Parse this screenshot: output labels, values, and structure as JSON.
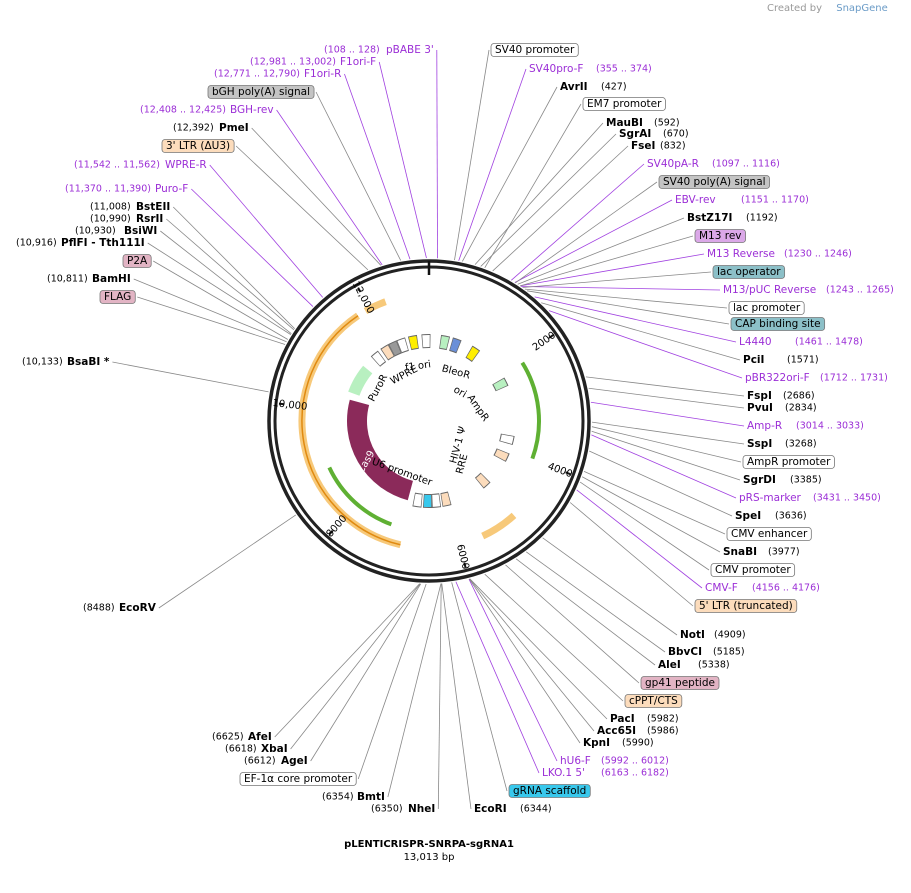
{
  "header": {
    "credit": "Created by",
    "brand": "SnapGene"
  },
  "right_labels": [
    {
      "name": "SV40 promoter"
    },
    {
      "name": "SV40pro-F",
      "detail": "(355 .. 374)"
    },
    {
      "name": "AvrII",
      "detail": "(427)"
    },
    {
      "name": "EM7 promoter"
    },
    {
      "name": "MauBI",
      "detail": "(592)"
    },
    {
      "name": "SgrAI",
      "detail": "(670)"
    },
    {
      "name": "FseI",
      "detail": "(832)"
    },
    {
      "name": "SV40pA-R",
      "detail": "(1097 .. 1116)"
    },
    {
      "name": "SV40 poly(A) signal"
    },
    {
      "name": "EBV-rev",
      "detail": "(1151 .. 1170)"
    },
    {
      "name": "BstZ17I",
      "detail": "(1192)"
    },
    {
      "name": "M13 rev"
    },
    {
      "name": "M13 Reverse",
      "detail": "(1230 .. 1246)"
    },
    {
      "name": "lac operator"
    },
    {
      "name": "M13/pUC Reverse",
      "detail": "(1243 .. 1265)"
    },
    {
      "name": "lac promoter"
    },
    {
      "name": "CAP binding site"
    },
    {
      "name": "L4440",
      "detail": "(1461 .. 1478)"
    },
    {
      "name": "PciI",
      "detail": "(1571)"
    },
    {
      "name": "pBR322ori-F",
      "detail": "(1712 .. 1731)"
    },
    {
      "name": "FspI",
      "detail": "(2686)"
    },
    {
      "name": "PvuI",
      "detail": "(2834)"
    },
    {
      "name": "Amp-R",
      "detail": "(3014 .. 3033)"
    },
    {
      "name": "SspI",
      "detail": "(3268)"
    },
    {
      "name": "AmpR promoter"
    },
    {
      "name": "SgrDI",
      "detail": "(3385)"
    },
    {
      "name": "pRS-marker",
      "detail": "(3431 .. 3450)"
    },
    {
      "name": "SpeI",
      "detail": "(3636)"
    },
    {
      "name": "CMV enhancer"
    },
    {
      "name": "SnaBI",
      "detail": "(3977)"
    },
    {
      "name": "CMV promoter"
    },
    {
      "name": "CMV-F",
      "detail": "(4156 .. 4176)"
    },
    {
      "name": "5' LTR (truncated)"
    },
    {
      "name": "NotI",
      "detail": "(4909)"
    },
    {
      "name": "BbvCI",
      "detail": "(5185)"
    },
    {
      "name": "AleI",
      "detail": "(5338)"
    },
    {
      "name": "gp41 peptide"
    },
    {
      "name": "cPPT/CTS"
    },
    {
      "name": "PacI",
      "detail": "(5982)"
    },
    {
      "name": "Acc65I",
      "detail": "(5986)"
    },
    {
      "name": "KpnI",
      "detail": "(5990)"
    },
    {
      "name": "hU6-F",
      "detail": "(5992 .. 6012)"
    },
    {
      "name": "LKO.1 5'",
      "detail": "(6163 .. 6182)"
    },
    {
      "name": "gRNA scaffold"
    },
    {
      "name": "EcoRI",
      "detail": "(6344)"
    }
  ],
  "left_labels": [
    {
      "name": "pBABE 3'",
      "detail": "(108 .. 128)"
    },
    {
      "name": "F1ori-F",
      "detail": "(12,981 .. 13,002)"
    },
    {
      "name": "F1ori-R",
      "detail": "(12,771 .. 12,790)"
    },
    {
      "name": "bGH poly(A) signal"
    },
    {
      "name": "BGH-rev",
      "detail": "(12,408 .. 12,425)"
    },
    {
      "name": "PmeI",
      "detail": "(12,392)"
    },
    {
      "name": "3' LTR (ΔU3)"
    },
    {
      "name": "WPRE-R",
      "detail": "(11,542 .. 11,562)"
    },
    {
      "name": "Puro-F",
      "detail": "(11,370 .. 11,390)"
    },
    {
      "name": "BstEII",
      "detail": "(11,008)"
    },
    {
      "name": "RsrII",
      "detail": "(10,990)"
    },
    {
      "name": "BsiWI",
      "detail": "(10,930)"
    },
    {
      "name": "PflFI - Tth111I",
      "detail": "(10,916)"
    },
    {
      "name": "P2A"
    },
    {
      "name": "BamHI",
      "detail": "(10,811)"
    },
    {
      "name": "FLAG"
    },
    {
      "name": "BsaBI *",
      "detail": "(10,133)"
    },
    {
      "name": "EcoRV",
      "detail": "(8488)"
    },
    {
      "name": "AfeI",
      "detail": "(6625)"
    },
    {
      "name": "XbaI",
      "detail": "(6618)"
    },
    {
      "name": "AgeI",
      "detail": "(6612)"
    },
    {
      "name": "EF-1α core promoter"
    },
    {
      "name": "BmtI",
      "detail": "(6354)"
    },
    {
      "name": "NheI",
      "detail": "(6350)"
    }
  ],
  "ring_ticks": [
    "2000",
    "4000",
    "6000",
    "8000",
    "10,000",
    "12,000"
  ],
  "map_features": [
    "PuroR",
    "WPRE",
    "f1 ori",
    "BleoR",
    "ori",
    "AmpR",
    "U6 promoter",
    "Cas9",
    "HIV-1 Ψ",
    "RRE"
  ],
  "footer": {
    "title": "pLENTICRISPR-SNRPA-sgRNA1",
    "size": "13,013 bp"
  }
}
